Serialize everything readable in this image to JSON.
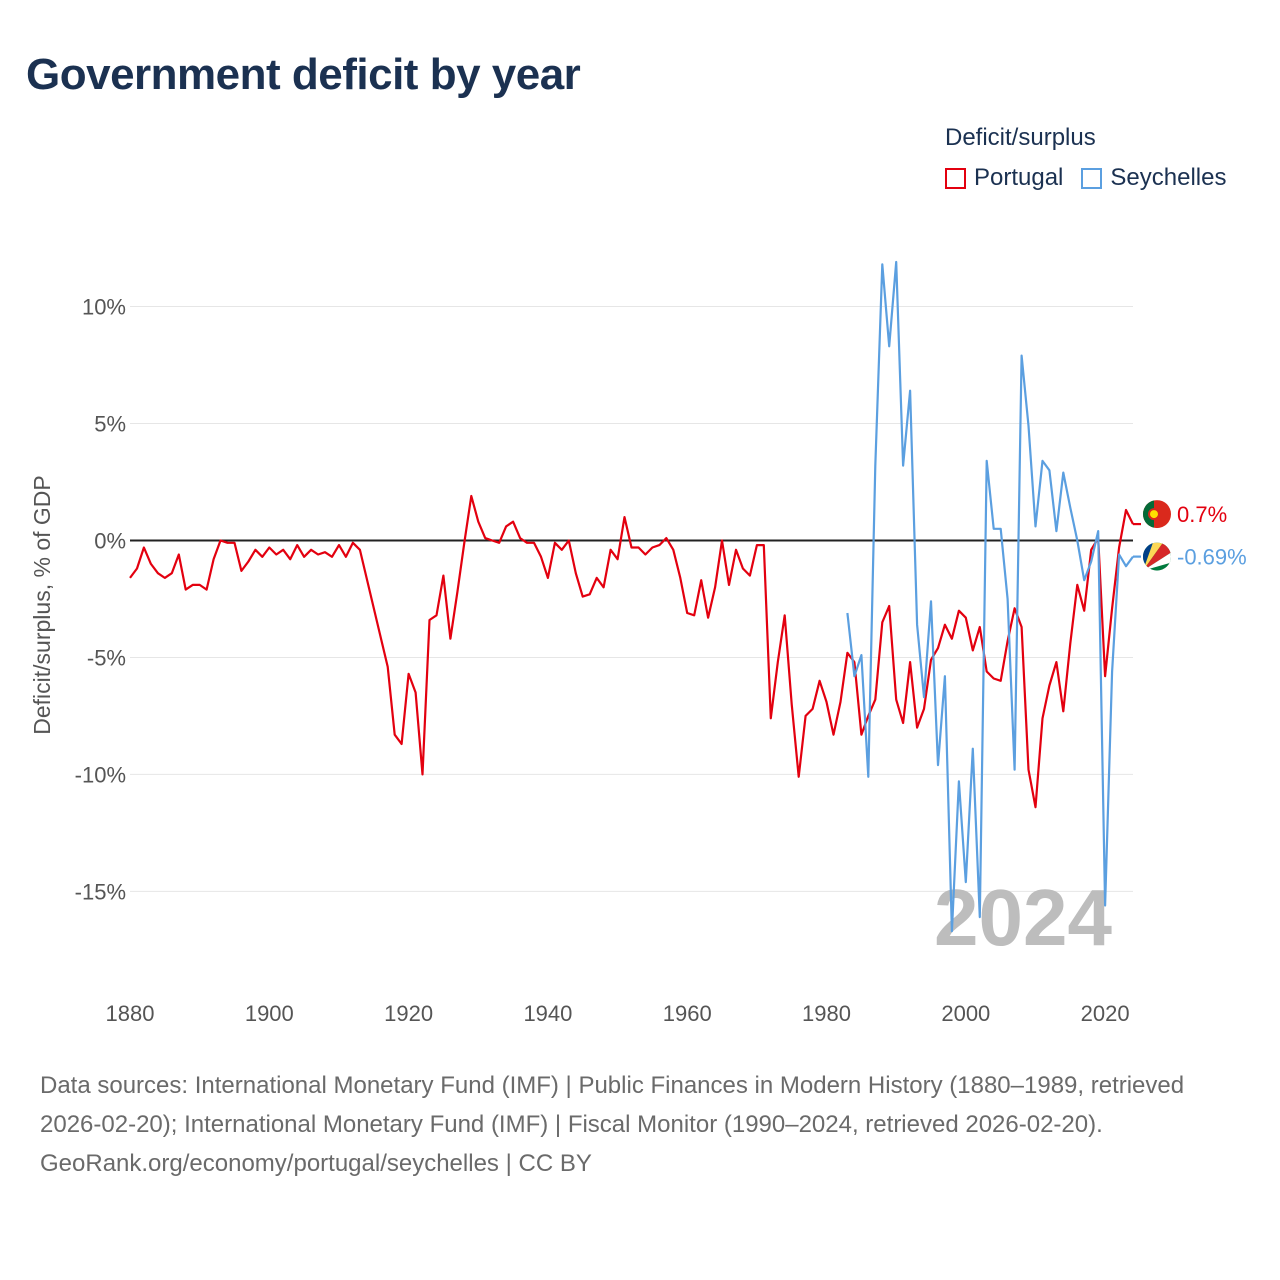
{
  "title": "Government deficit by year",
  "legend": {
    "title": "Deficit/surplus",
    "items": [
      {
        "name": "Portugal",
        "color": "#e3000f"
      },
      {
        "name": "Seychelles",
        "color": "#5b9fe0"
      }
    ]
  },
  "current_year": "2024",
  "end_labels": {
    "Portugal": "0.7%",
    "Seychelles": "-0.69%"
  },
  "footer": {
    "sources": "Data sources: International Monetary Fund (IMF) | Public Finances in Modern History (1880–1989, retrieved 2026-02-20); International Monetary Fund (IMF) | Fiscal Monitor (1990–2024, retrieved 2026-02-20).",
    "attribution": "GeoRank.org/economy/portugal/seychelles | CC BY"
  },
  "chart_data": {
    "type": "line",
    "title": "Government deficit by year",
    "xlabel": "",
    "ylabel": "Deficit/surplus, % of GDP",
    "xlim": [
      1880,
      2024
    ],
    "ylim": [
      -19,
      12.5
    ],
    "x_ticks": [
      1880,
      1900,
      1920,
      1940,
      1960,
      1980,
      2000,
      2020
    ],
    "y_ticks": [
      10,
      5,
      0,
      -5,
      -10,
      -15
    ],
    "y_tick_labels": [
      "10%",
      "5%",
      "0%",
      "-5%",
      "-10%",
      "-15%"
    ],
    "grid": true,
    "series": [
      {
        "name": "Portugal",
        "color": "#e3000f",
        "gap": [
          1912,
          1917
        ],
        "points": [
          [
            1880,
            -1.6
          ],
          [
            1881,
            -1.2
          ],
          [
            1882,
            -0.3
          ],
          [
            1883,
            -1.0
          ],
          [
            1884,
            -1.4
          ],
          [
            1885,
            -1.6
          ],
          [
            1886,
            -1.4
          ],
          [
            1887,
            -0.6
          ],
          [
            1888,
            -2.1
          ],
          [
            1889,
            -1.9
          ],
          [
            1890,
            -1.9
          ],
          [
            1891,
            -2.1
          ],
          [
            1892,
            -0.8
          ],
          [
            1893,
            0.0
          ],
          [
            1894,
            -0.1
          ],
          [
            1895,
            -0.1
          ],
          [
            1896,
            -1.3
          ],
          [
            1897,
            -0.9
          ],
          [
            1898,
            -0.4
          ],
          [
            1899,
            -0.7
          ],
          [
            1900,
            -0.3
          ],
          [
            1901,
            -0.6
          ],
          [
            1902,
            -0.4
          ],
          [
            1903,
            -0.8
          ],
          [
            1904,
            -0.2
          ],
          [
            1905,
            -0.7
          ],
          [
            1906,
            -0.4
          ],
          [
            1907,
            -0.6
          ],
          [
            1908,
            -0.5
          ],
          [
            1909,
            -0.7
          ],
          [
            1910,
            -0.2
          ],
          [
            1911,
            -0.7
          ],
          [
            1912,
            -0.1
          ],
          [
            1913,
            -0.4
          ],
          [
            1917,
            -5.4
          ],
          [
            1918,
            -8.3
          ],
          [
            1919,
            -8.7
          ],
          [
            1920,
            -5.7
          ],
          [
            1921,
            -6.5
          ],
          [
            1922,
            -10.0
          ],
          [
            1923,
            -3.4
          ],
          [
            1924,
            -3.2
          ],
          [
            1925,
            -1.5
          ],
          [
            1926,
            -4.2
          ],
          [
            1927,
            -2.2
          ],
          [
            1928,
            -0.1
          ],
          [
            1929,
            1.9
          ],
          [
            1930,
            0.8
          ],
          [
            1931,
            0.1
          ],
          [
            1932,
            0.0
          ],
          [
            1933,
            -0.1
          ],
          [
            1934,
            0.6
          ],
          [
            1935,
            0.8
          ],
          [
            1936,
            0.1
          ],
          [
            1937,
            -0.1
          ],
          [
            1938,
            -0.1
          ],
          [
            1939,
            -0.7
          ],
          [
            1940,
            -1.6
          ],
          [
            1941,
            -0.1
          ],
          [
            1942,
            -0.4
          ],
          [
            1943,
            0.0
          ],
          [
            1944,
            -1.4
          ],
          [
            1945,
            -2.4
          ],
          [
            1946,
            -2.3
          ],
          [
            1947,
            -1.6
          ],
          [
            1948,
            -2.0
          ],
          [
            1949,
            -0.4
          ],
          [
            1950,
            -0.8
          ],
          [
            1951,
            1.0
          ],
          [
            1952,
            -0.3
          ],
          [
            1953,
            -0.3
          ],
          [
            1954,
            -0.6
          ],
          [
            1955,
            -0.3
          ],
          [
            1956,
            -0.2
          ],
          [
            1957,
            0.1
          ],
          [
            1958,
            -0.4
          ],
          [
            1959,
            -1.6
          ],
          [
            1960,
            -3.1
          ],
          [
            1961,
            -3.2
          ],
          [
            1962,
            -1.7
          ],
          [
            1963,
            -3.3
          ],
          [
            1964,
            -2.0
          ],
          [
            1965,
            0.0
          ],
          [
            1966,
            -1.9
          ],
          [
            1967,
            -0.4
          ],
          [
            1968,
            -1.2
          ],
          [
            1969,
            -1.5
          ],
          [
            1970,
            -0.2
          ],
          [
            1971,
            -0.2
          ],
          [
            1972,
            -7.6
          ],
          [
            1973,
            -5.2
          ],
          [
            1974,
            -3.2
          ],
          [
            1975,
            -7.0
          ],
          [
            1976,
            -10.1
          ],
          [
            1977,
            -7.5
          ],
          [
            1978,
            -7.2
          ],
          [
            1979,
            -6.0
          ],
          [
            1980,
            -6.9
          ],
          [
            1981,
            -8.3
          ],
          [
            1982,
            -6.9
          ],
          [
            1983,
            -4.8
          ],
          [
            1984,
            -5.2
          ],
          [
            1985,
            -8.3
          ],
          [
            1986,
            -7.5
          ],
          [
            1987,
            -6.8
          ],
          [
            1988,
            -3.5
          ],
          [
            1989,
            -2.8
          ],
          [
            1990,
            -6.8
          ],
          [
            1991,
            -7.8
          ],
          [
            1992,
            -5.2
          ],
          [
            1993,
            -8.0
          ],
          [
            1994,
            -7.2
          ],
          [
            1995,
            -5.1
          ],
          [
            1996,
            -4.6
          ],
          [
            1997,
            -3.6
          ],
          [
            1998,
            -4.2
          ],
          [
            1999,
            -3.0
          ],
          [
            2000,
            -3.3
          ],
          [
            2001,
            -4.7
          ],
          [
            2002,
            -3.7
          ],
          [
            2003,
            -5.6
          ],
          [
            2004,
            -5.9
          ],
          [
            2005,
            -6.0
          ],
          [
            2006,
            -4.3
          ],
          [
            2007,
            -2.9
          ],
          [
            2008,
            -3.7
          ],
          [
            2009,
            -9.8
          ],
          [
            2010,
            -11.4
          ],
          [
            2011,
            -7.6
          ],
          [
            2012,
            -6.2
          ],
          [
            2013,
            -5.2
          ],
          [
            2014,
            -7.3
          ],
          [
            2015,
            -4.4
          ],
          [
            2016,
            -1.9
          ],
          [
            2017,
            -3.0
          ],
          [
            2018,
            -0.4
          ],
          [
            2019,
            0.1
          ],
          [
            2020,
            -5.8
          ],
          [
            2021,
            -2.9
          ],
          [
            2022,
            -0.3
          ],
          [
            2023,
            1.3
          ],
          [
            2024,
            0.7
          ]
        ]
      },
      {
        "name": "Seychelles",
        "color": "#5b9fe0",
        "points": [
          [
            1983,
            -3.1
          ],
          [
            1984,
            -5.8
          ],
          [
            1985,
            -4.9
          ],
          [
            1986,
            -10.1
          ],
          [
            1987,
            3.2
          ],
          [
            1988,
            11.8
          ],
          [
            1989,
            8.3
          ],
          [
            1990,
            11.9
          ],
          [
            1991,
            3.2
          ],
          [
            1992,
            6.4
          ],
          [
            1993,
            -3.6
          ],
          [
            1994,
            -6.7
          ],
          [
            1995,
            -2.6
          ],
          [
            1996,
            -9.6
          ],
          [
            1997,
            -5.8
          ],
          [
            1998,
            -16.7
          ],
          [
            1999,
            -10.3
          ],
          [
            2000,
            -14.6
          ],
          [
            2001,
            -8.9
          ],
          [
            2002,
            -16.1
          ],
          [
            2003,
            3.4
          ],
          [
            2004,
            0.5
          ],
          [
            2005,
            0.5
          ],
          [
            2006,
            -2.5
          ],
          [
            2007,
            -9.8
          ],
          [
            2008,
            7.9
          ],
          [
            2009,
            4.9
          ],
          [
            2010,
            0.6
          ],
          [
            2011,
            3.4
          ],
          [
            2012,
            3.0
          ],
          [
            2013,
            0.4
          ],
          [
            2014,
            2.9
          ],
          [
            2015,
            1.4
          ],
          [
            2016,
            0.0
          ],
          [
            2017,
            -1.7
          ],
          [
            2018,
            -0.9
          ],
          [
            2019,
            0.4
          ],
          [
            2020,
            -15.6
          ],
          [
            2021,
            -5.6
          ],
          [
            2022,
            -0.6
          ],
          [
            2023,
            -1.1
          ],
          [
            2024,
            -0.69
          ]
        ]
      }
    ],
    "end_values": {
      "Portugal": 0.7,
      "Seychelles": -0.69
    }
  }
}
